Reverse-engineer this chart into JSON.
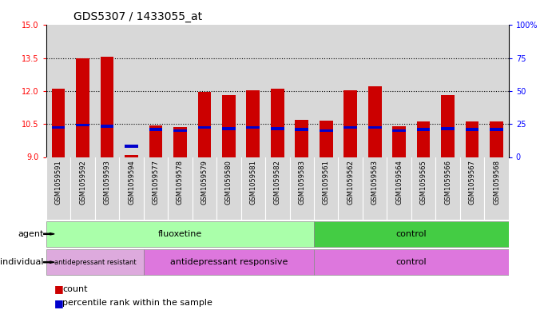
{
  "title": "GDS5307 / 1433055_at",
  "samples": [
    "GSM1059591",
    "GSM1059592",
    "GSM1059593",
    "GSM1059594",
    "GSM1059577",
    "GSM1059578",
    "GSM1059579",
    "GSM1059580",
    "GSM1059581",
    "GSM1059582",
    "GSM1059583",
    "GSM1059561",
    "GSM1059562",
    "GSM1059563",
    "GSM1059564",
    "GSM1059565",
    "GSM1059566",
    "GSM1059567",
    "GSM1059568"
  ],
  "counts": [
    12.1,
    13.5,
    13.55,
    9.1,
    10.45,
    10.35,
    11.95,
    11.8,
    12.05,
    12.1,
    10.7,
    10.65,
    12.05,
    12.2,
    10.4,
    10.6,
    11.8,
    10.6,
    10.6
  ],
  "percentiles": [
    10.35,
    10.45,
    10.4,
    9.5,
    10.25,
    10.2,
    10.35,
    10.3,
    10.35,
    10.3,
    10.25,
    10.2,
    10.35,
    10.35,
    10.2,
    10.25,
    10.3,
    10.25,
    10.25
  ],
  "ylim_left": [
    9,
    15
  ],
  "yticks_left": [
    9,
    10.5,
    12,
    13.5,
    15
  ],
  "ylim_right": [
    0,
    100
  ],
  "yticks_right": [
    0,
    25,
    50,
    75,
    100
  ],
  "yticklabels_right": [
    "0",
    "25",
    "50",
    "75",
    "100%"
  ],
  "bar_color": "#cc0000",
  "percentile_color": "#0000cc",
  "bar_width": 0.55,
  "bg_color": "#d8d8d8",
  "fluox_color": "#aaffaa",
  "ctrl_agent_color": "#44cc44",
  "resistant_color": "#ddaadd",
  "responsive_color": "#dd77dd",
  "ctrl_indiv_color": "#dd77dd",
  "title_fontsize": 10,
  "tick_fontsize": 7,
  "sample_fontsize": 6,
  "annot_fontsize": 8,
  "legend_fontsize": 8
}
